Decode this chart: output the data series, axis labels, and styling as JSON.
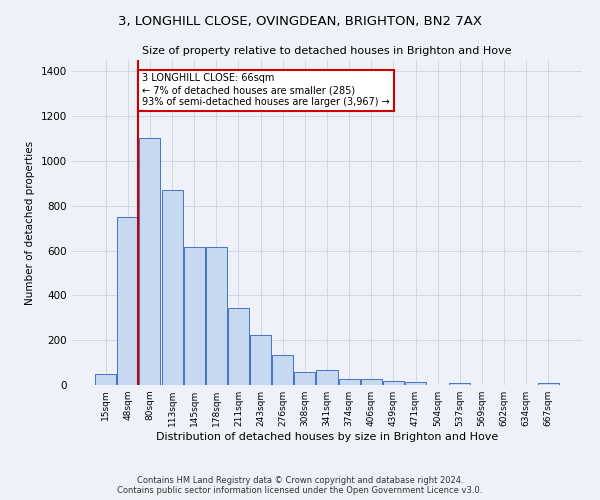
{
  "title": "3, LONGHILL CLOSE, OVINGDEAN, BRIGHTON, BN2 7AX",
  "subtitle": "Size of property relative to detached houses in Brighton and Hove",
  "xlabel": "Distribution of detached houses by size in Brighton and Hove",
  "ylabel": "Number of detached properties",
  "footer_line1": "Contains HM Land Registry data © Crown copyright and database right 2024.",
  "footer_line2": "Contains public sector information licensed under the Open Government Licence v3.0.",
  "bar_labels": [
    "15sqm",
    "48sqm",
    "80sqm",
    "113sqm",
    "145sqm",
    "178sqm",
    "211sqm",
    "243sqm",
    "276sqm",
    "308sqm",
    "341sqm",
    "374sqm",
    "406sqm",
    "439sqm",
    "471sqm",
    "504sqm",
    "537sqm",
    "569sqm",
    "602sqm",
    "634sqm",
    "667sqm"
  ],
  "bar_values": [
    50,
    750,
    1100,
    870,
    615,
    615,
    345,
    225,
    135,
    60,
    65,
    25,
    25,
    20,
    12,
    0,
    8,
    0,
    0,
    0,
    8
  ],
  "bar_color": "#c6d9f0",
  "bar_edge_color": "#4472c4",
  "grid_color": "#d0d8e8",
  "background_color": "#eef2f8",
  "annotation_line1": "3 LONGHILL CLOSE: 66sqm",
  "annotation_line2": "← 7% of detached houses are smaller (285)",
  "annotation_line3": "93% of semi-detached houses are larger (3,967) →",
  "annotation_box_color": "#ffffff",
  "annotation_box_edge_color": "#cc0000",
  "red_line_x": 1.45,
  "ylim": [
    0,
    1450
  ],
  "yticks": [
    0,
    200,
    400,
    600,
    800,
    1000,
    1200,
    1400
  ]
}
